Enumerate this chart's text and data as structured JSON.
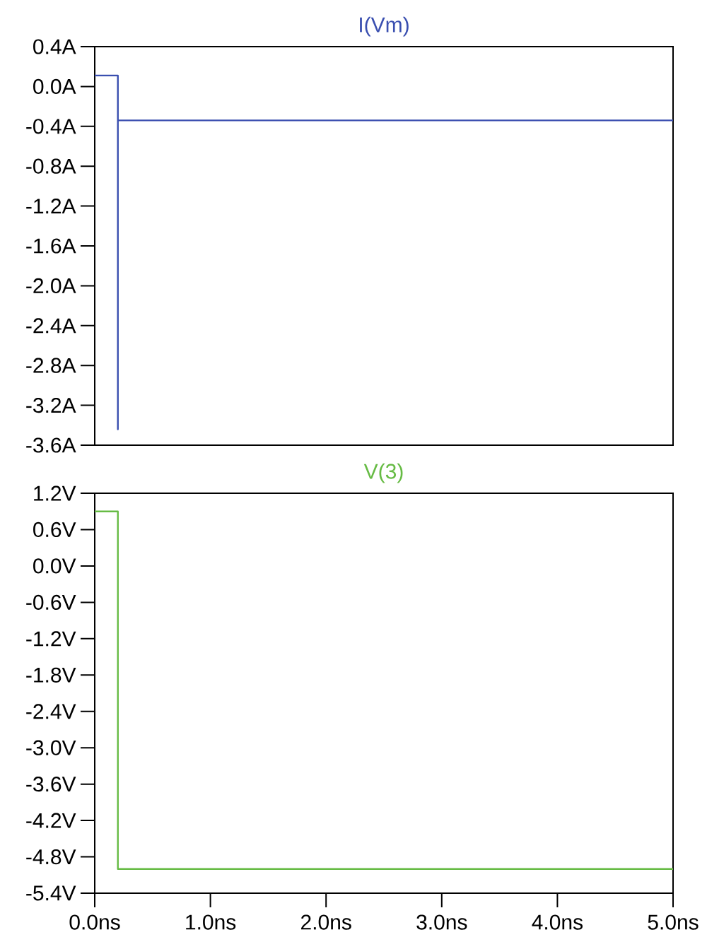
{
  "chart_data": [
    {
      "type": "line",
      "title": "I(Vm)",
      "xlim": [
        0,
        5
      ],
      "ylim": [
        -3.6,
        0.4
      ],
      "tick_labels": "y",
      "yticks": [
        {
          "value": 0.4,
          "label": "0.4A"
        },
        {
          "value": 0.0,
          "label": "0.0A"
        },
        {
          "value": -0.4,
          "label": "-0.4A"
        },
        {
          "value": -0.8,
          "label": "-0.8A"
        },
        {
          "value": -1.2,
          "label": "-1.2A"
        },
        {
          "value": -1.6,
          "label": "-1.6A"
        },
        {
          "value": -2.0,
          "label": "-2.0A"
        },
        {
          "value": -2.4,
          "label": "-2.4A"
        },
        {
          "value": -2.8,
          "label": "-2.8A"
        },
        {
          "value": -3.2,
          "label": "-3.2A"
        },
        {
          "value": -3.6,
          "label": "-3.6A"
        }
      ],
      "series": [
        {
          "color": "#3a4fb0",
          "x": [
            0,
            0.2,
            0.2,
            0.2,
            5
          ],
          "values": [
            0.11,
            0.11,
            -3.44,
            -0.34,
            -0.34
          ]
        }
      ]
    },
    {
      "type": "line",
      "title": "V(3)",
      "xlim": [
        0,
        5
      ],
      "ylim": [
        -5.4,
        1.2
      ],
      "xticks": [
        {
          "value": 0,
          "label": "0.0ns"
        },
        {
          "value": 1,
          "label": "1.0ns"
        },
        {
          "value": 2,
          "label": "2.0ns"
        },
        {
          "value": 3,
          "label": "3.0ns"
        },
        {
          "value": 4,
          "label": "4.0ns"
        },
        {
          "value": 5,
          "label": "5.0ns"
        }
      ],
      "yticks": [
        {
          "value": 1.2,
          "label": "1.2V"
        },
        {
          "value": 0.6,
          "label": "0.6V"
        },
        {
          "value": 0.0,
          "label": "0.0V"
        },
        {
          "value": -0.6,
          "label": "-0.6V"
        },
        {
          "value": -1.2,
          "label": "-1.2V"
        },
        {
          "value": -1.8,
          "label": "-1.8V"
        },
        {
          "value": -2.4,
          "label": "-2.4V"
        },
        {
          "value": -3.0,
          "label": "-3.0V"
        },
        {
          "value": -3.6,
          "label": "-3.6V"
        },
        {
          "value": -4.2,
          "label": "-4.2V"
        },
        {
          "value": -4.8,
          "label": "-4.8V"
        },
        {
          "value": -5.4,
          "label": "-5.4V"
        }
      ],
      "series": [
        {
          "color": "#66bb44",
          "x": [
            0,
            0.2,
            0.2,
            5
          ],
          "values": [
            0.9,
            0.9,
            -5.0,
            -5.0
          ]
        }
      ]
    }
  ]
}
